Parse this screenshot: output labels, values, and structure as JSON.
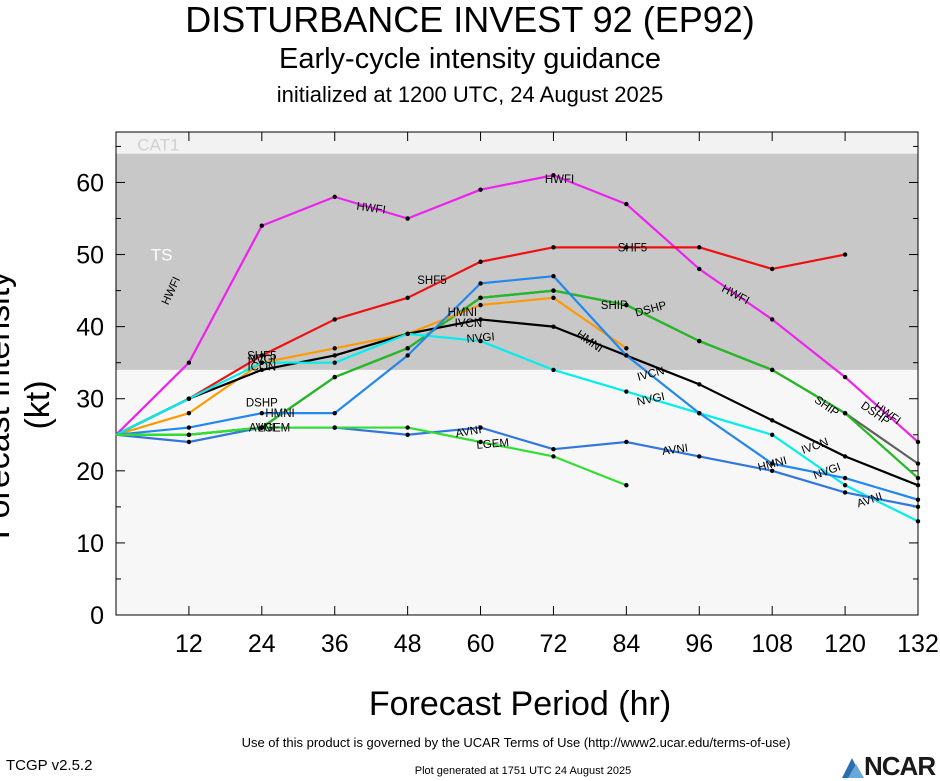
{
  "header": {
    "title": "DISTURBANCE INVEST 92 (EP92)",
    "subtitle": "Early-cycle intensity guidance",
    "init": "initialized at 1200 UTC, 24 August 2025"
  },
  "footer": {
    "terms": "Use of this product is governed by the UCAR Terms of Use (http://www2.ucar.edu/terms-of-use)",
    "version": "TCGP v2.5.2",
    "generated": "Plot generated at 1751 UTC   24 August 2025",
    "logo": "NCAR"
  },
  "chart_data": {
    "type": "line",
    "xlabel": "Forecast Period (hr)",
    "ylabel": "Forecast Intensity (kt)",
    "xlim": [
      0,
      132
    ],
    "ylim": [
      0,
      67
    ],
    "xticks": [
      12,
      24,
      36,
      48,
      60,
      72,
      84,
      96,
      108,
      120,
      132
    ],
    "yticks": [
      0,
      10,
      20,
      30,
      40,
      50,
      60
    ],
    "bands": [
      {
        "label": "TS",
        "from": 34,
        "to": 64,
        "color": "#c8c8c8"
      },
      {
        "label": "CAT1",
        "from": 64,
        "to": 67,
        "color": "#f2f2f2"
      }
    ],
    "series": [
      {
        "name": "HWFI",
        "color": "#ee22ee",
        "points": [
          [
            0,
            25
          ],
          [
            12,
            35
          ],
          [
            24,
            54
          ],
          [
            36,
            58
          ],
          [
            48,
            55
          ],
          [
            60,
            59
          ],
          [
            72,
            61
          ],
          [
            84,
            57
          ],
          [
            96,
            48
          ],
          [
            108,
            41
          ],
          [
            120,
            33
          ],
          [
            132,
            24
          ]
        ]
      },
      {
        "name": "SHF5",
        "color": "#ee1111",
        "points": [
          [
            0,
            25
          ],
          [
            12,
            30
          ],
          [
            24,
            36
          ],
          [
            36,
            41
          ],
          [
            48,
            44
          ],
          [
            60,
            49
          ],
          [
            72,
            51
          ],
          [
            84,
            51
          ],
          [
            96,
            51
          ],
          [
            108,
            48
          ],
          [
            120,
            50
          ]
        ]
      },
      {
        "name": "DSHP",
        "color": "#606060",
        "points": [
          [
            0,
            25
          ],
          [
            12,
            25
          ],
          [
            24,
            26
          ],
          [
            36,
            33
          ],
          [
            48,
            37
          ],
          [
            60,
            44
          ],
          [
            72,
            45
          ],
          [
            84,
            43
          ],
          [
            96,
            38
          ],
          [
            108,
            34
          ],
          [
            120,
            28
          ],
          [
            132,
            21
          ]
        ]
      },
      {
        "name": "SHIP",
        "color": "#22bb22",
        "points": [
          [
            0,
            25
          ],
          [
            12,
            25
          ],
          [
            24,
            26
          ],
          [
            36,
            33
          ],
          [
            48,
            37
          ],
          [
            60,
            44
          ],
          [
            72,
            45
          ],
          [
            84,
            43
          ],
          [
            96,
            38
          ],
          [
            108,
            34
          ],
          [
            120,
            28
          ],
          [
            132,
            19
          ]
        ]
      },
      {
        "name": "ICON",
        "color": "#ff9900",
        "points": [
          [
            0,
            25
          ],
          [
            12,
            28
          ],
          [
            24,
            35
          ],
          [
            36,
            37
          ],
          [
            48,
            39
          ],
          [
            60,
            43
          ],
          [
            72,
            44
          ],
          [
            84,
            37
          ]
        ]
      },
      {
        "name": "IVCN",
        "color": "#000000",
        "points": [
          [
            0,
            25
          ],
          [
            12,
            30
          ],
          [
            24,
            34
          ],
          [
            36,
            36
          ],
          [
            48,
            39
          ],
          [
            60,
            41
          ],
          [
            72,
            40
          ],
          [
            84,
            36
          ],
          [
            96,
            32
          ],
          [
            108,
            27
          ],
          [
            120,
            22
          ],
          [
            132,
            18
          ]
        ]
      },
      {
        "name": "NVGI",
        "color": "#00eeee",
        "points": [
          [
            0,
            25
          ],
          [
            12,
            30
          ],
          [
            24,
            35
          ],
          [
            36,
            35
          ],
          [
            48,
            39
          ],
          [
            60,
            38
          ],
          [
            72,
            34
          ],
          [
            84,
            31
          ],
          [
            96,
            28
          ],
          [
            108,
            25
          ],
          [
            120,
            18
          ],
          [
            132,
            13
          ]
        ]
      },
      {
        "name": "HMNI",
        "color": "#2288ee",
        "points": [
          [
            0,
            25
          ],
          [
            12,
            26
          ],
          [
            24,
            28
          ],
          [
            36,
            28
          ],
          [
            48,
            36
          ],
          [
            60,
            46
          ],
          [
            72,
            47
          ],
          [
            84,
            36
          ],
          [
            96,
            28
          ],
          [
            108,
            21
          ],
          [
            120,
            19
          ],
          [
            132,
            16
          ]
        ]
      },
      {
        "name": "AVNI",
        "color": "#3377dd",
        "points": [
          [
            0,
            25
          ],
          [
            12,
            24
          ],
          [
            24,
            26
          ],
          [
            36,
            26
          ],
          [
            48,
            25
          ],
          [
            60,
            26
          ],
          [
            72,
            23
          ],
          [
            84,
            24
          ],
          [
            96,
            22
          ],
          [
            108,
            20
          ],
          [
            120,
            17
          ],
          [
            132,
            15
          ]
        ]
      },
      {
        "name": "LGEM",
        "color": "#33dd33",
        "points": [
          [
            0,
            25
          ],
          [
            12,
            25
          ],
          [
            24,
            26
          ],
          [
            36,
            26
          ],
          [
            48,
            26
          ],
          [
            60,
            24
          ],
          [
            72,
            22
          ],
          [
            84,
            18
          ]
        ]
      }
    ],
    "labels": [
      {
        "series": "HWFI",
        "x": 9,
        "y": 45,
        "rot": -65
      },
      {
        "series": "HWFI",
        "x": 42,
        "y": 56.5,
        "rot": 8
      },
      {
        "series": "HWFI",
        "x": 73,
        "y": 60.5,
        "rot": 0
      },
      {
        "series": "HWFI",
        "x": 102,
        "y": 44.5,
        "rot": 28
      },
      {
        "series": "HWFI",
        "x": 127,
        "y": 28,
        "rot": 35
      },
      {
        "series": "SHF5",
        "x": 85,
        "y": 51,
        "rot": 0
      },
      {
        "series": "SHF5",
        "x": 52,
        "y": 46.5,
        "rot": 0
      },
      {
        "series": "SHF5",
        "x": 24,
        "y": 36,
        "rot": 0
      },
      {
        "series": "DSHP",
        "x": 88,
        "y": 42.5,
        "rot": -15
      },
      {
        "series": "DSHP",
        "x": 125,
        "y": 28,
        "rot": 35
      },
      {
        "series": "DSHP",
        "x": 24,
        "y": 29.5,
        "rot": 0
      },
      {
        "series": "SHIP",
        "x": 82,
        "y": 43,
        "rot": 0
      },
      {
        "series": "SHIP",
        "x": 117,
        "y": 29,
        "rot": 35
      },
      {
        "series": "ICON",
        "x": 24,
        "y": 34.5,
        "rot": 0
      },
      {
        "series": "IVCN",
        "x": 58,
        "y": 40.5,
        "rot": 0
      },
      {
        "series": "IVCN",
        "x": 88,
        "y": 33.5,
        "rot": -15
      },
      {
        "series": "IVCN",
        "x": 115,
        "y": 23.5,
        "rot": -20
      },
      {
        "series": "NVGI",
        "x": 24,
        "y": 35.5,
        "rot": 0
      },
      {
        "series": "NVGI",
        "x": 60,
        "y": 38.5,
        "rot": -5
      },
      {
        "series": "NVGI",
        "x": 88,
        "y": 30,
        "rot": -12
      },
      {
        "series": "NVGI",
        "x": 117,
        "y": 20,
        "rot": -20
      },
      {
        "series": "HMNI",
        "x": 27,
        "y": 28,
        "rot": 0
      },
      {
        "series": "HMNI",
        "x": 57,
        "y": 42,
        "rot": 0
      },
      {
        "series": "HMNI",
        "x": 78,
        "y": 38,
        "rot": 35
      },
      {
        "series": "HMNI",
        "x": 108,
        "y": 21,
        "rot": -15
      },
      {
        "series": "AVNI",
        "x": 58,
        "y": 25.5,
        "rot": -10
      },
      {
        "series": "AVNI",
        "x": 92,
        "y": 23,
        "rot": -8
      },
      {
        "series": "AVNI",
        "x": 124,
        "y": 16,
        "rot": -18
      },
      {
        "series": "AVNI",
        "x": 24,
        "y": 26,
        "rot": 0
      },
      {
        "series": "LGEM",
        "x": 62,
        "y": 23.8,
        "rot": -5
      },
      {
        "series": "LGEM",
        "x": 26,
        "y": 26,
        "rot": 0
      }
    ]
  }
}
